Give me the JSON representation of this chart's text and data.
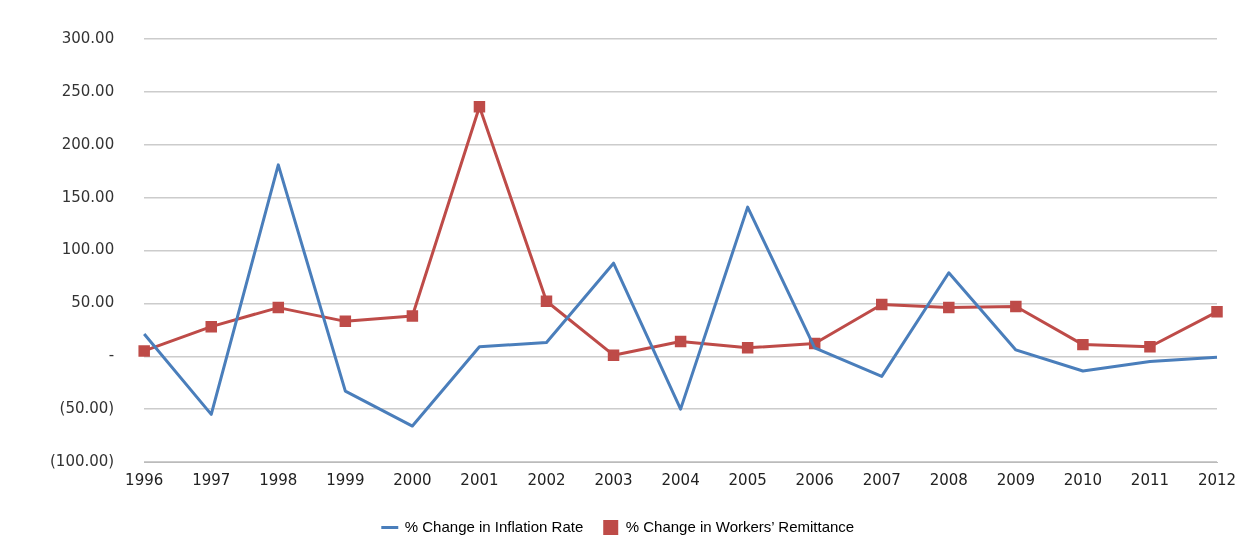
{
  "chart_data": {
    "type": "line",
    "categories": [
      "1996",
      "1997",
      "1998",
      "1999",
      "2000",
      "2001",
      "2002",
      "2003",
      "2004",
      "2005",
      "2006",
      "2007",
      "2008",
      "2009",
      "2010",
      "2011",
      "2012"
    ],
    "series": [
      {
        "name": "% Change in Inflation Rate",
        "color": "#4a7ebb",
        "marker": "none",
        "values": [
          21,
          -55,
          181,
          -33,
          -66,
          9,
          13,
          88,
          -50,
          141,
          8,
          -19,
          79,
          6,
          -14,
          -5,
          -1
        ]
      },
      {
        "name": "% Change in Workers’ Remittance",
        "color": "#be4b48",
        "marker": "square",
        "values": [
          5,
          28,
          46,
          33,
          38,
          236,
          52,
          1,
          14,
          8,
          12,
          49,
          46,
          47,
          11,
          9,
          42
        ]
      }
    ],
    "ylim": [
      -100,
      300
    ],
    "yticks": [
      {
        "value": -100,
        "label": "(100.00)"
      },
      {
        "value": -50,
        "label": "(50.00)"
      },
      {
        "value": 0,
        "label": "-"
      },
      {
        "value": 50,
        "label": "50.00"
      },
      {
        "value": 100,
        "label": "100.00"
      },
      {
        "value": 150,
        "label": "150.00"
      },
      {
        "value": 200,
        "label": "200.00"
      },
      {
        "value": 250,
        "label": "250.00"
      },
      {
        "value": 300,
        "label": "300.00"
      }
    ],
    "grid": "y",
    "legend": "bottom",
    "line_style": "solid"
  }
}
